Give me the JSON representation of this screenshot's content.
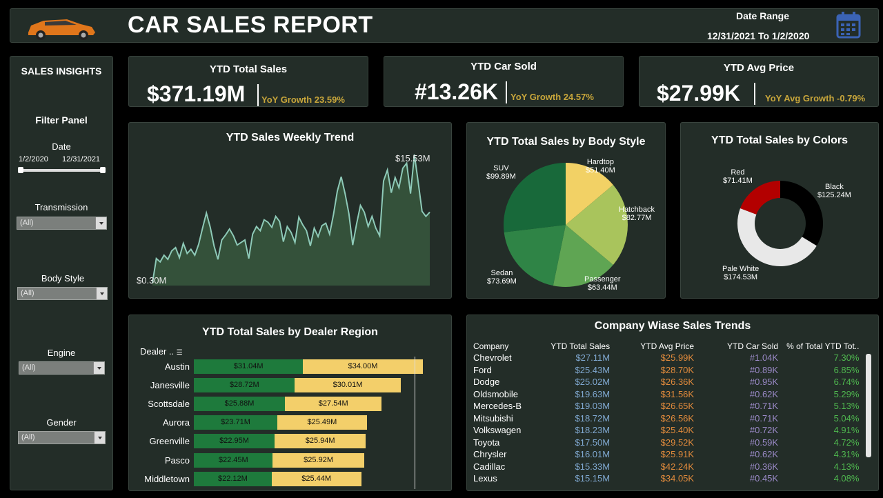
{
  "header": {
    "title": "CAR SALES REPORT",
    "date_range_label": "Date Range",
    "date_range_value": "12/31/2021 To 1/2/2020"
  },
  "sidebar": {
    "title": "SALES INSIGHTS",
    "filter_panel": "Filter Panel",
    "date_label": "Date",
    "date_start": "1/2/2020",
    "date_end": "12/31/2021",
    "filters": [
      {
        "label": "Transmission",
        "value": "(All)"
      },
      {
        "label": "Body Style",
        "value": "(All)"
      },
      {
        "label": "Engine",
        "value": "(All)"
      },
      {
        "label": "Gender",
        "value": "(All)"
      }
    ]
  },
  "kpis": [
    {
      "label": "YTD Total Sales",
      "value": "$371.19M",
      "growth": "YoY Growth 23.59%"
    },
    {
      "label": "YTD Car Sold",
      "value": "#13.26K",
      "growth": "YoY Growth 24.57%"
    },
    {
      "label": "YTD Avg Price",
      "value": "$27.99K",
      "growth": "YoY Avg Growth -0.79%"
    }
  ],
  "weekly_trend": {
    "title": "YTD Sales Weekly Trend",
    "max_label": "$15.53M",
    "min_label": "$0.30M",
    "values": [
      0.3,
      3.2,
      2.8,
      3.6,
      3.1,
      4.1,
      4.5,
      3.3,
      5.0,
      3.8,
      4.3,
      3.6,
      4.9,
      6.8,
      8.6,
      6.9,
      4.7,
      3.1,
      5.4,
      6.0,
      6.7,
      5.9,
      4.8,
      5.1,
      5.4,
      3.2,
      6.1,
      7.0,
      6.5,
      7.8,
      7.5,
      6.9,
      8.2,
      7.6,
      5.2,
      7.0,
      6.3,
      5.1,
      8.1,
      7.2,
      6.5,
      4.7,
      6.8,
      5.8,
      7.1,
      7.4,
      6.1,
      8.4,
      11.2,
      12.9,
      10.9,
      8.5,
      4.8,
      7.3,
      9.5,
      8.7,
      7.0,
      8.2,
      6.8,
      5.9,
      12.4,
      13.7,
      11.0,
      12.8,
      11.6,
      13.9,
      14.5,
      10.9,
      15.53,
      12.2,
      8.8,
      8.2,
      8.7
    ]
  },
  "body_style": {
    "title": "YTD Total Sales by Body Style",
    "slices": [
      {
        "name": "Hardtop",
        "value": "$51.40M",
        "amount": 51.4,
        "color": "#f2d165"
      },
      {
        "name": "Hatchback",
        "value": "$82.77M",
        "amount": 82.77,
        "color": "#a9c45c"
      },
      {
        "name": "Passenger",
        "value": "$63.44M",
        "amount": 63.44,
        "color": "#5fa553"
      },
      {
        "name": "Sedan",
        "value": "$73.69M",
        "amount": 73.69,
        "color": "#2f8446"
      },
      {
        "name": "SUV",
        "value": "$99.89M",
        "amount": 99.89,
        "color": "#18693a"
      }
    ]
  },
  "colors": {
    "title": "YTD Total Sales by Colors",
    "slices": [
      {
        "name": "Black",
        "value": "$125.24M",
        "amount": 125.24,
        "color": "#000000"
      },
      {
        "name": "Pale White",
        "value": "$174.53M",
        "amount": 174.53,
        "color": "#e8e8e8"
      },
      {
        "name": "Red",
        "value": "$71.41M",
        "amount": 71.41,
        "color": "#b30000"
      }
    ]
  },
  "dealer_region": {
    "title": "YTD Total Sales by Dealer Region",
    "header": "Dealer ..",
    "rows": [
      {
        "name": "Austin",
        "g": "$31.04M",
        "gv": 31.04,
        "y": "$34.00M",
        "yv": 34.0
      },
      {
        "name": "Janesville",
        "g": "$28.72M",
        "gv": 28.72,
        "y": "$30.01M",
        "yv": 30.01
      },
      {
        "name": "Scottsdale",
        "g": "$25.88M",
        "gv": 25.88,
        "y": "$27.54M",
        "yv": 27.54
      },
      {
        "name": "Aurora",
        "g": "$23.71M",
        "gv": 23.71,
        "y": "$25.49M",
        "yv": 25.49
      },
      {
        "name": "Greenville",
        "g": "$22.95M",
        "gv": 22.95,
        "y": "$25.94M",
        "yv": 25.94
      },
      {
        "name": "Pasco",
        "g": "$22.45M",
        "gv": 22.45,
        "y": "$25.92M",
        "yv": 25.92
      },
      {
        "name": "Middletown",
        "g": "$22.12M",
        "gv": 22.12,
        "y": "$25.44M",
        "yv": 25.44
      }
    ]
  },
  "company_table": {
    "title": "Company Wiase Sales Trends",
    "columns": [
      "Company",
      "YTD Total Sales",
      "YTD Avg Price",
      "YTD Car Sold",
      "% of Total YTD Tot.."
    ],
    "rows": [
      [
        "Chevrolet",
        "$27.11M",
        "$25.99K",
        "#1.04K",
        "7.30%"
      ],
      [
        "Ford",
        "$25.43M",
        "$28.70K",
        "#0.89K",
        "6.85%"
      ],
      [
        "Dodge",
        "$25.02M",
        "$26.36K",
        "#0.95K",
        "6.74%"
      ],
      [
        "Oldsmobile",
        "$19.63M",
        "$31.56K",
        "#0.62K",
        "5.29%"
      ],
      [
        "Mercedes-B",
        "$19.03M",
        "$26.65K",
        "#0.71K",
        "5.13%"
      ],
      [
        "Mitsubishi",
        "$18.72M",
        "$26.56K",
        "#0.71K",
        "5.04%"
      ],
      [
        "Volkswagen",
        "$18.23M",
        "$25.40K",
        "#0.72K",
        "4.91%"
      ],
      [
        "Toyota",
        "$17.50M",
        "$29.52K",
        "#0.59K",
        "4.72%"
      ],
      [
        "Chrysler",
        "$16.01M",
        "$25.91K",
        "#0.62K",
        "4.31%"
      ],
      [
        "Cadillac",
        "$15.33M",
        "$42.24K",
        "#0.36K",
        "4.13%"
      ],
      [
        "Lexus",
        "$15.15M",
        "$34.05K",
        "#0.45K",
        "4.08%"
      ]
    ]
  },
  "colors_accent": {
    "growth": "#c8a63b",
    "panel": "#232d28",
    "trend_line": "#8ecab8"
  }
}
